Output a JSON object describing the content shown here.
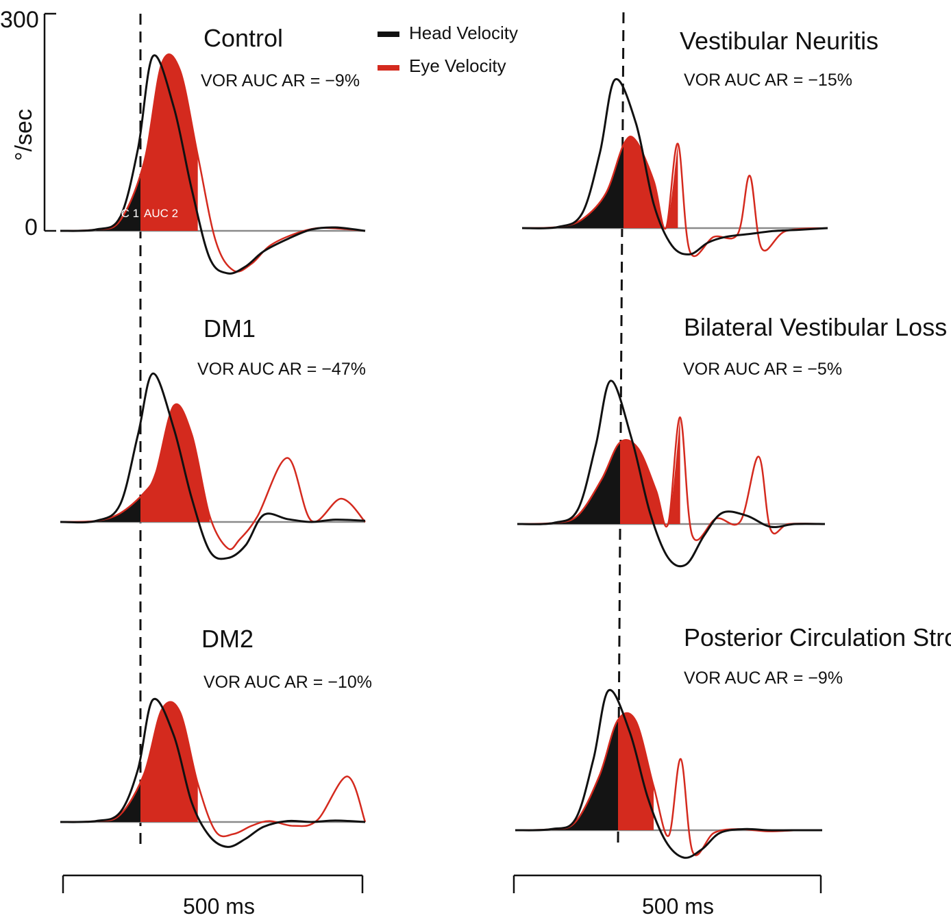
{
  "legend": {
    "head": {
      "label": "Head Velocity",
      "color": "#111111"
    },
    "eye": {
      "label": "Eye Velocity",
      "color": "#d42a1e"
    }
  },
  "axis": {
    "y_label": "°/sec",
    "y_max_label": "300",
    "y_min_label": "0",
    "ylim": [
      -60,
      300
    ]
  },
  "scale_bars": {
    "left_label": "500 ms",
    "right_label": "500 ms"
  },
  "auc_labels": {
    "auc1": "AUC 1",
    "auc2": "AUC 2"
  },
  "colors": {
    "head": "#111111",
    "eye": "#d42a1e",
    "baseline": "#8a8a8a"
  },
  "chart_data": [
    {
      "type": "line",
      "title": "Control",
      "subtitle": "VOR  AUC AR = −9%",
      "xlabel": "500 ms",
      "ylabel": "°/sec",
      "series": [
        {
          "name": "Head Velocity",
          "x": [
            0,
            60,
            100,
            130,
            155,
            190,
            220,
            250,
            280,
            310,
            340,
            380,
            420,
            460,
            510
          ],
          "y": [
            0,
            2,
            20,
            120,
            255,
            180,
            60,
            -40,
            -62,
            -52,
            -30,
            -12,
            2,
            5,
            0
          ]
        },
        {
          "name": "Eye Velocity",
          "x": [
            0,
            60,
            100,
            140,
            170,
            200,
            230,
            260,
            290,
            320,
            350,
            390,
            430,
            470,
            510
          ],
          "y": [
            0,
            2,
            15,
            100,
            245,
            235,
            110,
            -15,
            -58,
            -48,
            -22,
            -5,
            4,
            3,
            0
          ]
        }
      ]
    },
    {
      "type": "line",
      "title": "DM1",
      "subtitle": "VOR  AUC AR = −47%",
      "xlabel": "500 ms",
      "ylabel": "°/sec",
      "series": [
        {
          "name": "Head Velocity",
          "x": [
            0,
            60,
            100,
            130,
            155,
            190,
            220,
            250,
            280,
            310,
            340,
            380,
            420,
            460,
            510
          ],
          "y": [
            0,
            2,
            30,
            150,
            255,
            160,
            40,
            -50,
            -62,
            -40,
            12,
            5,
            0,
            4,
            2
          ]
        },
        {
          "name": "Eye Velocity",
          "x": [
            0,
            60,
            100,
            140,
            160,
            190,
            220,
            250,
            280,
            300,
            330,
            380,
            420,
            470,
            510
          ],
          "y": [
            0,
            2,
            15,
            50,
            85,
            200,
            150,
            10,
            -45,
            -30,
            10,
            110,
            2,
            40,
            0
          ]
        }
      ]
    },
    {
      "type": "line",
      "title": "DM2",
      "subtitle": "VOR  AUC AR = −10%",
      "xlabel": "500 ms",
      "ylabel": "°/sec",
      "series": [
        {
          "name": "Head Velocity",
          "x": [
            0,
            60,
            100,
            130,
            155,
            190,
            220,
            250,
            280,
            310,
            340,
            380,
            420,
            460,
            510
          ],
          "y": [
            0,
            2,
            20,
            110,
            255,
            180,
            40,
            -30,
            -52,
            -35,
            -10,
            2,
            0,
            3,
            0
          ]
        },
        {
          "name": "Eye Velocity",
          "x": [
            0,
            60,
            100,
            140,
            170,
            200,
            230,
            260,
            290,
            320,
            350,
            390,
            430,
            480,
            510
          ],
          "y": [
            0,
            2,
            15,
            100,
            235,
            230,
            80,
            -20,
            -25,
            -8,
            2,
            -8,
            4,
            95,
            0
          ]
        }
      ]
    },
    {
      "type": "line",
      "title": "Vestibular   Neuritis",
      "subtitle": "VOR  AUC AR = −15%",
      "xlabel": "500 ms",
      "ylabel": "°/sec",
      "series": [
        {
          "name": "Head Velocity",
          "x": [
            0,
            60,
            100,
            130,
            155,
            190,
            220,
            250,
            280,
            310,
            340,
            380,
            420,
            460,
            510
          ],
          "y": [
            0,
            2,
            25,
            130,
            255,
            180,
            40,
            -30,
            -45,
            -25,
            -15,
            -10,
            -5,
            -3,
            0
          ]
        },
        {
          "name": "Eye Velocity",
          "x": [
            0,
            60,
            100,
            140,
            170,
            190,
            220,
            240,
            260,
            280,
            320,
            360,
            380,
            400,
            440,
            510
          ],
          "y": [
            0,
            2,
            15,
            60,
            145,
            150,
            80,
            0,
            145,
            -40,
            -15,
            -10,
            90,
            -35,
            -5,
            0
          ]
        }
      ]
    },
    {
      "type": "line",
      "title": "Bilateral Vestibular Loss",
      "subtitle": "VOR  AUC AR = −5%",
      "xlabel": "500 ms",
      "ylabel": "°/sec",
      "series": [
        {
          "name": "Head Velocity",
          "x": [
            0,
            60,
            100,
            130,
            155,
            190,
            220,
            250,
            280,
            310,
            340,
            380,
            420,
            460,
            510
          ],
          "y": [
            0,
            2,
            25,
            140,
            255,
            150,
            20,
            -60,
            -72,
            -20,
            20,
            15,
            -5,
            0,
            0
          ]
        },
        {
          "name": "Eye Velocity",
          "x": [
            0,
            60,
            100,
            140,
            170,
            200,
            230,
            250,
            270,
            290,
            330,
            370,
            400,
            420,
            450,
            510
          ],
          "y": [
            0,
            2,
            15,
            80,
            145,
            135,
            60,
            0,
            190,
            -20,
            10,
            5,
            120,
            -10,
            0,
            0
          ]
        }
      ]
    },
    {
      "type": "line",
      "title": "Posterior Circulation Stroke",
      "subtitle": "VOR  AUC AR = −9%",
      "xlabel": "500 ms",
      "ylabel": "°/sec",
      "series": [
        {
          "name": "Head Velocity",
          "x": [
            0,
            60,
            100,
            130,
            155,
            190,
            220,
            250,
            280,
            310,
            340,
            380,
            420,
            460,
            510
          ],
          "y": [
            0,
            2,
            20,
            130,
            255,
            180,
            60,
            -20,
            -50,
            -35,
            -5,
            2,
            0,
            0,
            0
          ]
        },
        {
          "name": "Eye Velocity",
          "x": [
            0,
            60,
            100,
            140,
            170,
            200,
            230,
            255,
            275,
            295,
            330,
            370,
            420,
            470,
            510
          ],
          "y": [
            0,
            2,
            15,
            100,
            200,
            200,
            80,
            -10,
            130,
            -40,
            -5,
            2,
            -2,
            0,
            0
          ]
        }
      ]
    }
  ]
}
